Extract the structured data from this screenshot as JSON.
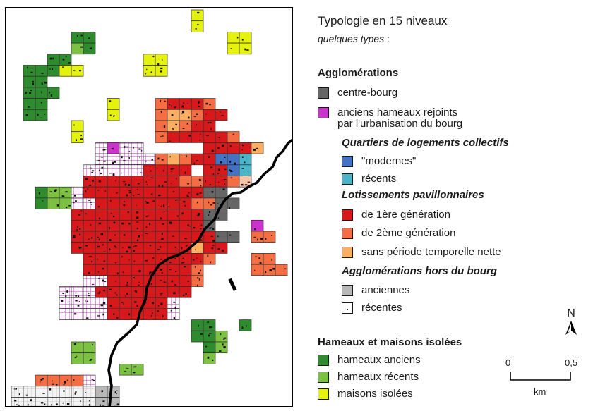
{
  "legend": {
    "title": "Typologie en 15 niveaux",
    "subtitle": "quelques types",
    "subtitle_suffix": " :",
    "agglomerations": {
      "title": "Agglomérations",
      "items": [
        {
          "key": "centre",
          "label": "centre-bourg",
          "color": "#666666"
        },
        {
          "key": "anciens_hameaux",
          "label": "anciens hameaux rejoints\n    par l'urbanisation du bourg",
          "color": "#cc33cc"
        }
      ]
    },
    "collectifs": {
      "title": "Quartiers de logements collectifs",
      "items": [
        {
          "key": "modernes",
          "label": "\"modernes\"",
          "color": "#4472c4"
        },
        {
          "key": "recents_coll",
          "label": "récents",
          "color": "#4ab5c9"
        }
      ]
    },
    "lotissements": {
      "title": "Lotissements pavillonnaires",
      "items": [
        {
          "key": "gen1",
          "label": "de 1ère génération",
          "color": "#d7191c"
        },
        {
          "key": "gen2",
          "label": "de 2ème génération",
          "color": "#f46d43"
        },
        {
          "key": "sans",
          "label": "sans période temporelle nette",
          "color": "#fdae61"
        }
      ]
    },
    "hors_bourg": {
      "title": "Agglomérations hors du bourg",
      "items": [
        {
          "key": "hb_anciennes",
          "label": "anciennes",
          "color": "#b8b8b8"
        },
        {
          "key": "hb_recentes",
          "label": "récentes",
          "color": "#ffffff"
        }
      ]
    },
    "hameaux": {
      "title": "Hameaux et maisons isolées",
      "items": [
        {
          "key": "h_anciens",
          "label": "hameaux anciens",
          "color": "#2e8b2e"
        },
        {
          "key": "h_recents",
          "label": "hameaux récents",
          "color": "#7cc142"
        },
        {
          "key": "maisons",
          "label": "maisons isolées",
          "color": "#e5f20d"
        }
      ]
    }
  },
  "north_arrow": {
    "label": "N"
  },
  "scale": {
    "start": "0",
    "end": "0,5",
    "unit": "km"
  },
  "map": {
    "grid_cell_colors": {
      "dark_green": "#2e8b2e",
      "light_green": "#7cc142",
      "yellow": "#e5f20d",
      "red": "#d7191c",
      "orange": "#f46d43",
      "light_orange": "#fdae61",
      "salmon": "#f9c4a8",
      "grey": "#666666",
      "light_grey": "#b8b8b8",
      "purple_grid": "#cc33cc",
      "blue": "#4472c4",
      "cyan": "#4ab5c9"
    }
  }
}
